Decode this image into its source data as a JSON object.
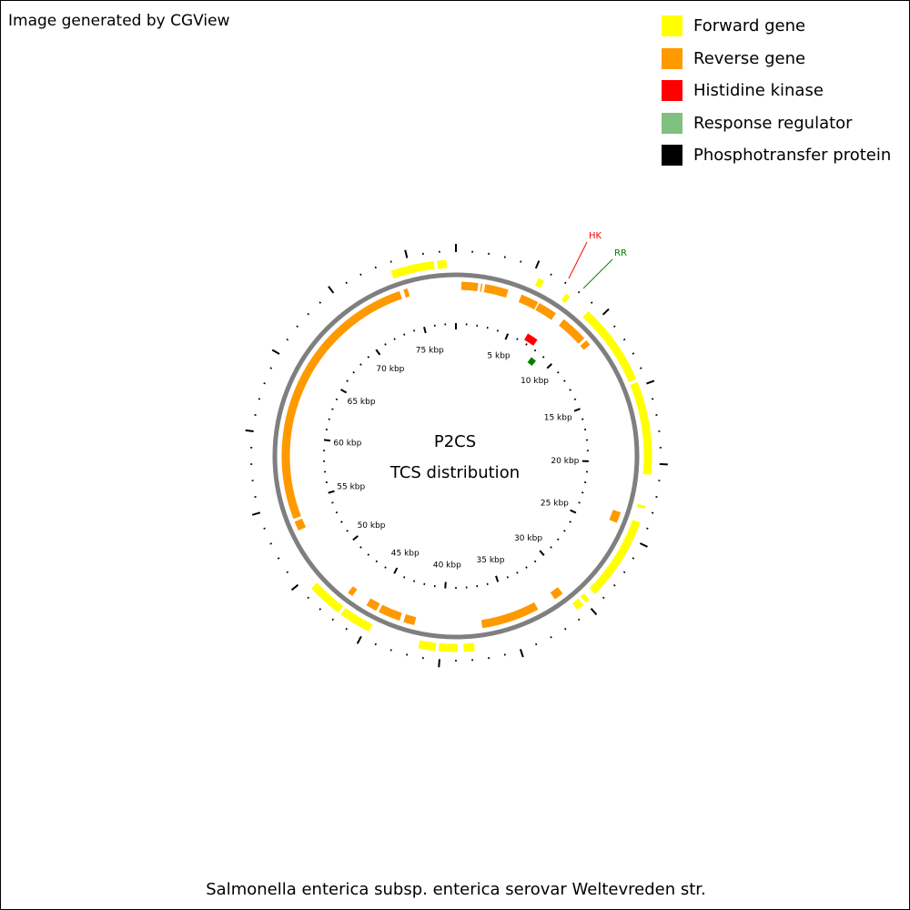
{
  "credit": "Image generated by CGView",
  "legend": [
    {
      "label": "Forward gene",
      "color": "#ffff00"
    },
    {
      "label": "Reverse gene",
      "color": "#ff9900"
    },
    {
      "label": "Histidine kinase",
      "color": "#ff0000"
    },
    {
      "label": "Response regulator",
      "color": "#80c080"
    },
    {
      "label": "Phosphotransfer protein",
      "color": "#000000"
    }
  ],
  "map": {
    "title_line1": "P2CS",
    "title_line2": "TCS distribution",
    "sequence_length_kbp": 78,
    "tick_labels": [
      "5 kbp",
      "10 kbp",
      "15 kbp",
      "20 kbp",
      "25 kbp",
      "30 kbp",
      "35 kbp",
      "40 kbp",
      "45 kbp",
      "50 kbp",
      "55 kbp",
      "60 kbp",
      "65 kbp",
      "70 kbp",
      "75 kbp"
    ],
    "forward_genes_kbp": [
      [
        5.4,
        5.8
      ],
      [
        7.4,
        7.7
      ],
      [
        9.2,
        14.5
      ],
      [
        14.7,
        18.6
      ],
      [
        18.6,
        20.7
      ],
      [
        22.7,
        22.9
      ],
      [
        23.8,
        29.2
      ],
      [
        29.7,
        30.0
      ],
      [
        30.2,
        30.7
      ],
      [
        37.8,
        38.5
      ],
      [
        38.9,
        40.1
      ],
      [
        40.3,
        41.4
      ],
      [
        44.7,
        46.8
      ],
      [
        47.0,
        49.3
      ],
      [
        73.8,
        76.6
      ],
      [
        76.8,
        77.4
      ]
    ],
    "reverse_genes_kbp": [
      [
        0.4,
        1.6
      ],
      [
        1.8,
        1.9
      ],
      [
        2.1,
        3.8
      ],
      [
        4.8,
        6.1
      ],
      [
        6.2,
        7.6
      ],
      [
        8.3,
        10.3
      ],
      [
        10.5,
        10.9
      ],
      [
        23.6,
        24.4
      ],
      [
        30.8,
        31.5
      ],
      [
        32.9,
        37.1
      ],
      [
        42.0,
        42.8
      ],
      [
        43.1,
        44.7
      ],
      [
        44.9,
        45.7
      ],
      [
        46.9,
        47.3
      ],
      [
        53.0,
        53.7
      ],
      [
        53.9,
        73.9
      ],
      [
        74.2,
        74.5
      ]
    ],
    "histidine_kinase_kbp": [
      [
        6.6,
        7.6
      ]
    ],
    "response_regulator_kbp": [
      [
        8.1,
        8.7
      ]
    ],
    "feature_labels": {
      "hk": "HK",
      "rr": "RR"
    },
    "footer": "Salmonella enterica subsp. enterica serovar Weltevreden str."
  }
}
